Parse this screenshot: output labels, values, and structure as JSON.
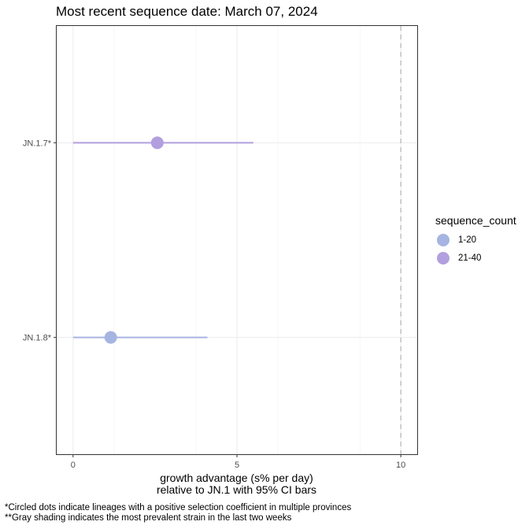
{
  "chart_data": {
    "type": "scatter",
    "title": "Most recent sequence date: March 07, 2024",
    "xlabel": [
      "growth advantage (s% per day)",
      "relative to  JN.1  with 95% CI bars"
    ],
    "ylabel": "",
    "xlim": [
      -0.5,
      10.5
    ],
    "x_ticks": [
      0,
      5,
      10
    ],
    "x_tick_labels": [
      "0",
      "5",
      "10"
    ],
    "y_categories": [
      "JN.1.7*",
      "JN.1.8*"
    ],
    "points": [
      {
        "lineage": "JN.1.7*",
        "value": 2.57,
        "ci_low": 0.0,
        "ci_high": 5.5,
        "sequence_count": "21-40"
      },
      {
        "lineage": "JN.1.8*",
        "value": 1.15,
        "ci_low": 0.0,
        "ci_high": 4.1,
        "sequence_count": "1-20"
      }
    ],
    "reference_line": {
      "x": 10,
      "style": "dashed",
      "color": "#bdbdbd"
    },
    "grid": true,
    "legend": {
      "title": "sequence_count",
      "position": "right",
      "entries": [
        {
          "label": "1-20",
          "color": "#a6b4e2"
        },
        {
          "label": "21-40",
          "color": "#b29fdf"
        }
      ]
    }
  },
  "footnotes": [
    "*Circled dots indicate lineages with a positive selection coefficient in multiple provinces",
    "**Gray shading indicates the most prevalent strain in the last two weeks"
  ]
}
